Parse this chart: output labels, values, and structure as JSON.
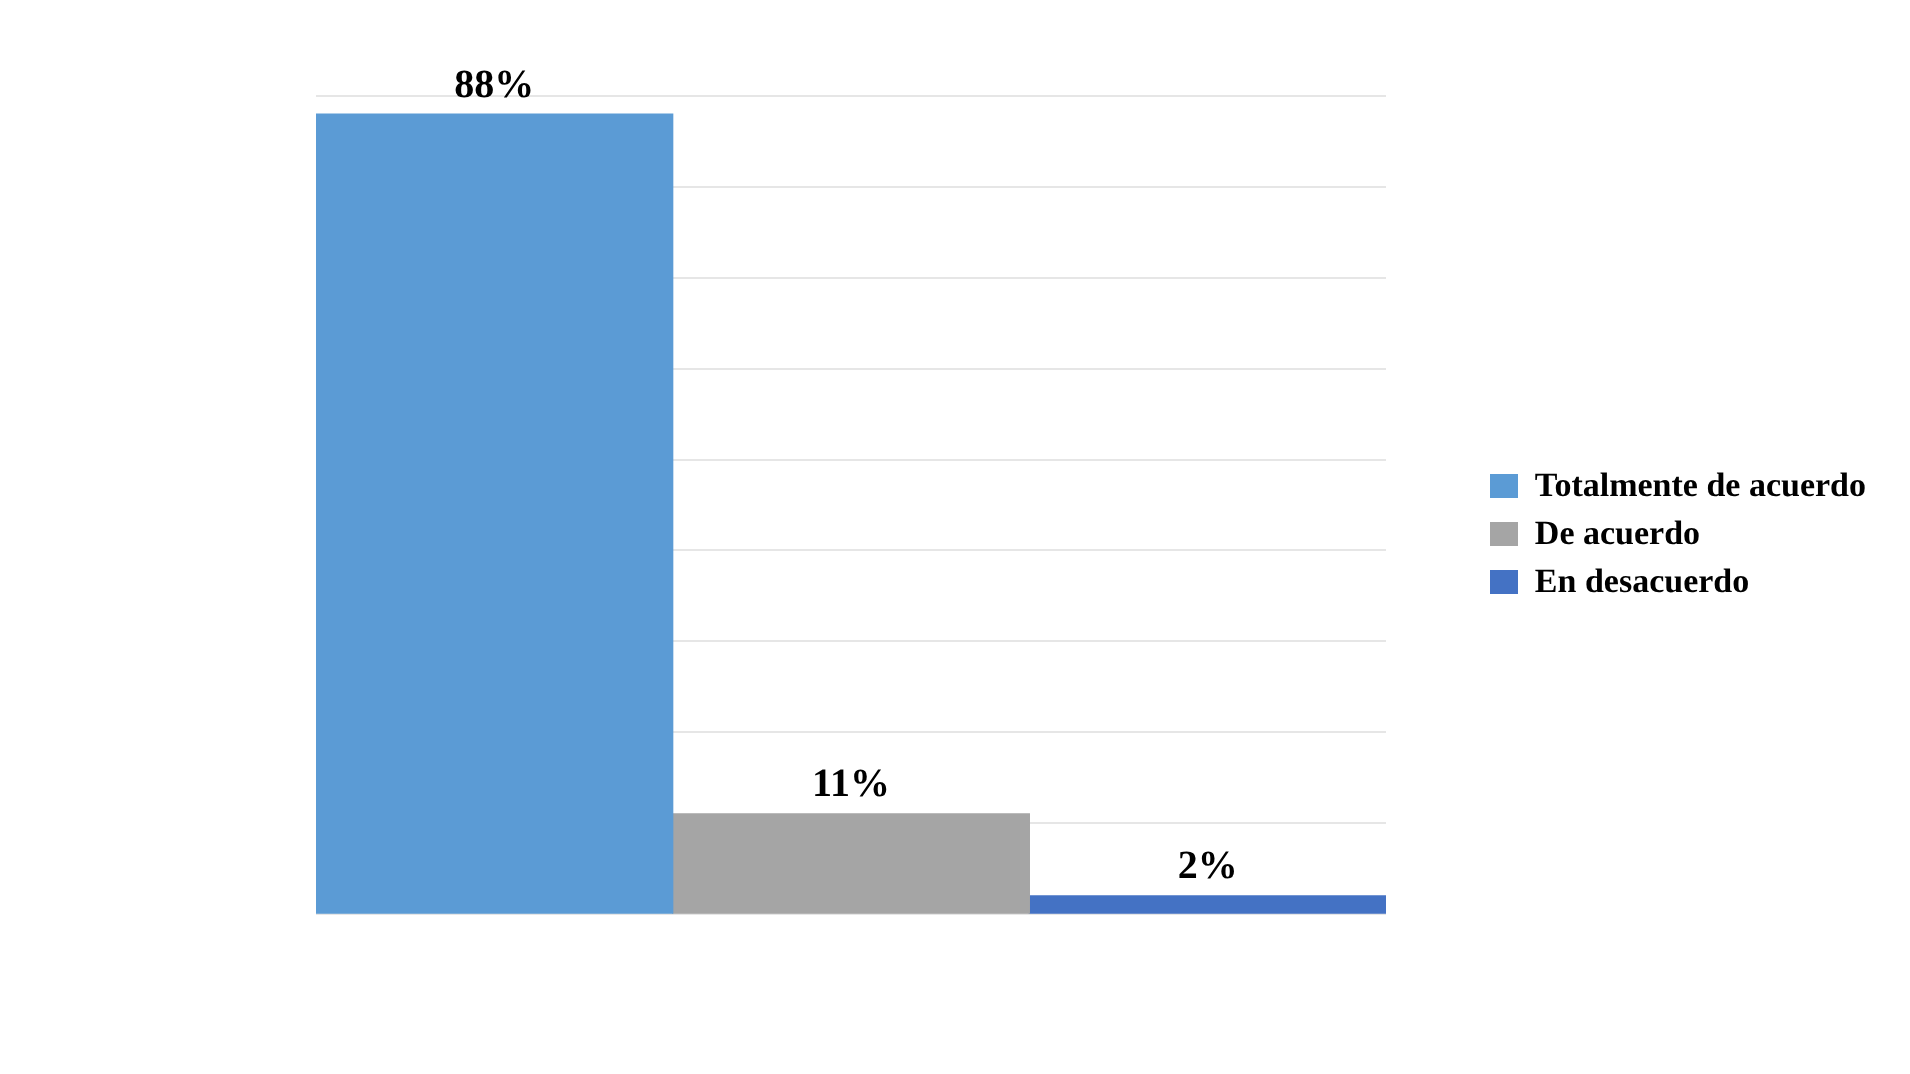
{
  "chart_data": {
    "type": "bar",
    "categories": [
      null,
      null,
      null
    ],
    "series": [
      {
        "name": "Totalmente de acuerdo",
        "color": "#5b9bd5",
        "values": [
          88,
          null,
          null
        ],
        "value_labels": [
          "88%",
          null,
          null
        ]
      },
      {
        "name": "De acuerdo",
        "color": "#a5a5a5",
        "values": [
          null,
          11,
          null
        ],
        "value_labels": [
          null,
          "11%",
          null
        ]
      },
      {
        "name": "En desacuerdo",
        "color": "#4472c4",
        "values": [
          null,
          null,
          2
        ],
        "value_labels": [
          null,
          null,
          "2%"
        ]
      }
    ],
    "stacked": true,
    "grid": "y",
    "legend": "right",
    "tick_labels": false
  }
}
